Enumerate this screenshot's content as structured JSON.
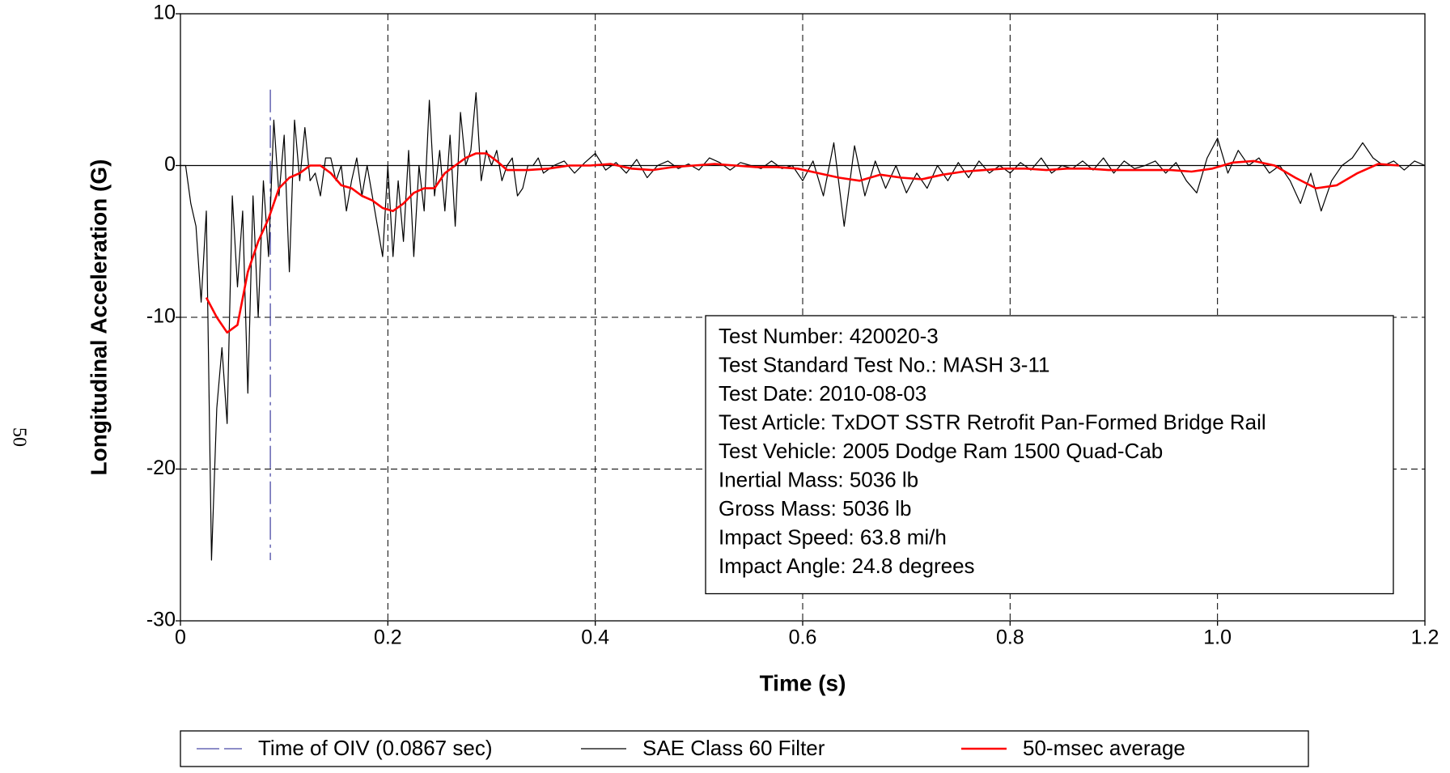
{
  "chart_data": {
    "type": "line",
    "page_number": "50",
    "xlabel": "Time (s)",
    "ylabel": "Longitudinal Acceleration (G)",
    "xlim": [
      0,
      1.2
    ],
    "ylim": [
      -30,
      10
    ],
    "xticks": [
      0,
      0.2,
      0.4,
      0.6,
      0.8,
      {
        "value": 1.0,
        "label": "1.0"
      },
      1.2
    ],
    "yticks": [
      -30,
      -20,
      -10,
      0,
      10
    ],
    "grid": true,
    "legend": "bottom",
    "info_box": [
      "Test Number: 420020-3",
      "Test Standard Test No.: MASH 3-11",
      "Test Date: 2010-08-03",
      "Test Article: TxDOT SSTR Retrofit Pan-Formed Bridge Rail",
      "Test Vehicle: 2005 Dodge Ram 1500 Quad-Cab",
      "Inertial Mass: 5036 lb",
      "Gross Mass: 5036 lb",
      "Impact Speed: 63.8 mi/h",
      "Impact Angle: 24.8 degrees"
    ],
    "series": [
      {
        "name": "Time of OIV (0.0867 sec)",
        "color": "#4b4ba6",
        "dash": "dashdot",
        "width": 1.3,
        "x": [
          0.0867,
          0.0867
        ],
        "values": [
          5,
          -26
        ]
      },
      {
        "name": "SAE Class 60 Filter",
        "color": "#000000",
        "dash": "solid",
        "width": 1.2,
        "x": [
          0,
          0.005,
          0.01,
          0.015,
          0.02,
          0.025,
          0.03,
          0.035,
          0.04,
          0.045,
          0.05,
          0.055,
          0.06,
          0.065,
          0.07,
          0.075,
          0.08,
          0.085,
          0.09,
          0.095,
          0.1,
          0.105,
          0.11,
          0.115,
          0.12,
          0.125,
          0.13,
          0.135,
          0.14,
          0.145,
          0.15,
          0.155,
          0.16,
          0.165,
          0.17,
          0.175,
          0.18,
          0.185,
          0.19,
          0.195,
          0.2,
          0.205,
          0.21,
          0.215,
          0.22,
          0.225,
          0.23,
          0.235,
          0.24,
          0.245,
          0.25,
          0.255,
          0.26,
          0.265,
          0.27,
          0.275,
          0.28,
          0.285,
          0.29,
          0.295,
          0.3,
          0.305,
          0.31,
          0.315,
          0.32,
          0.325,
          0.33,
          0.335,
          0.34,
          0.345,
          0.35,
          0.36,
          0.37,
          0.38,
          0.39,
          0.4,
          0.41,
          0.42,
          0.43,
          0.44,
          0.45,
          0.46,
          0.47,
          0.48,
          0.49,
          0.5,
          0.51,
          0.52,
          0.53,
          0.54,
          0.55,
          0.56,
          0.57,
          0.58,
          0.59,
          0.6,
          0.61,
          0.62,
          0.63,
          0.64,
          0.65,
          0.66,
          0.67,
          0.68,
          0.69,
          0.7,
          0.71,
          0.72,
          0.73,
          0.74,
          0.75,
          0.76,
          0.77,
          0.78,
          0.79,
          0.8,
          0.81,
          0.82,
          0.83,
          0.84,
          0.85,
          0.86,
          0.87,
          0.88,
          0.89,
          0.9,
          0.91,
          0.92,
          0.93,
          0.94,
          0.95,
          0.96,
          0.97,
          0.98,
          0.99,
          1.0,
          1.01,
          1.02,
          1.03,
          1.04,
          1.05,
          1.06,
          1.07,
          1.08,
          1.09,
          1.1,
          1.11,
          1.12,
          1.13,
          1.14,
          1.15,
          1.16,
          1.17,
          1.18,
          1.19,
          1.2
        ],
        "values": [
          0,
          0,
          -2.5,
          -4,
          -9,
          -3,
          -26,
          -16,
          -12,
          -17,
          -2,
          -8,
          -3,
          -15,
          -2,
          -10,
          -1,
          -6,
          3,
          -2,
          2,
          -7,
          3,
          -1,
          2.5,
          -1,
          -0.5,
          -2,
          0.5,
          0.5,
          -1,
          0,
          -3,
          -1,
          0.5,
          -2,
          0,
          -2,
          -4,
          -6,
          0,
          -6,
          -1,
          -5,
          1,
          -6,
          0,
          -3,
          4.3,
          -2,
          1,
          -3,
          2,
          -4,
          3.5,
          0,
          1,
          4.8,
          -1,
          1,
          0,
          1,
          -1,
          0,
          0.5,
          -2,
          -1.5,
          0,
          0,
          0.5,
          -0.5,
          0,
          0.3,
          -0.5,
          0.2,
          0.8,
          -0.3,
          0.2,
          -0.5,
          0.4,
          -0.8,
          0,
          0.3,
          -0.2,
          0.1,
          -0.3,
          0.5,
          0.2,
          -0.3,
          0.2,
          0,
          -0.2,
          0.3,
          -0.2,
          0,
          -1,
          0.3,
          -2,
          1.5,
          -4,
          1.3,
          -2,
          0.3,
          -1.5,
          0,
          -1.8,
          -0.5,
          -1.5,
          0,
          -1,
          0.2,
          -0.8,
          0.3,
          -0.5,
          0,
          -0.5,
          0.2,
          -0.3,
          0.5,
          -0.5,
          0,
          -0.2,
          0.3,
          -0.3,
          0.5,
          -0.5,
          0.3,
          -0.2,
          0,
          0.3,
          -0.5,
          0.2,
          -1,
          -1.8,
          0.5,
          1.8,
          -0.5,
          1,
          0,
          0.5,
          -0.5,
          0,
          -1,
          -2.5,
          -0.5,
          -3,
          -1,
          0,
          0.5,
          1.5,
          0.5,
          0,
          0.3,
          -0.3,
          0.3,
          0
        ]
      },
      {
        "name": "50-msec average",
        "color": "#ff0000",
        "dash": "solid",
        "width": 2.6,
        "x": [
          0.025,
          0.035,
          0.045,
          0.055,
          0.065,
          0.075,
          0.085,
          0.095,
          0.105,
          0.115,
          0.125,
          0.135,
          0.145,
          0.155,
          0.165,
          0.175,
          0.185,
          0.195,
          0.205,
          0.215,
          0.225,
          0.235,
          0.245,
          0.255,
          0.265,
          0.275,
          0.285,
          0.295,
          0.305,
          0.315,
          0.325,
          0.335,
          0.355,
          0.375,
          0.395,
          0.415,
          0.435,
          0.455,
          0.475,
          0.495,
          0.515,
          0.535,
          0.555,
          0.575,
          0.595,
          0.615,
          0.635,
          0.655,
          0.675,
          0.695,
          0.715,
          0.735,
          0.755,
          0.775,
          0.795,
          0.815,
          0.835,
          0.855,
          0.875,
          0.895,
          0.915,
          0.935,
          0.955,
          0.975,
          0.995,
          1.015,
          1.035,
          1.055,
          1.075,
          1.095,
          1.115,
          1.135,
          1.155,
          1.175
        ],
        "values": [
          -8.7,
          -10,
          -11,
          -10.5,
          -7,
          -5,
          -3.5,
          -1.5,
          -0.8,
          -0.5,
          0,
          0,
          -0.5,
          -1.3,
          -1.5,
          -2,
          -2.3,
          -2.8,
          -3,
          -2.5,
          -1.8,
          -1.5,
          -1.5,
          -0.5,
          0,
          0.5,
          0.8,
          0.8,
          0.3,
          -0.3,
          -0.3,
          -0.3,
          -0.2,
          0,
          0,
          0.1,
          -0.2,
          -0.3,
          -0.1,
          0,
          0.1,
          0,
          -0.1,
          -0.1,
          -0.2,
          -0.5,
          -0.8,
          -1,
          -0.6,
          -0.8,
          -0.9,
          -0.6,
          -0.4,
          -0.3,
          -0.2,
          -0.2,
          -0.3,
          -0.2,
          -0.2,
          -0.3,
          -0.3,
          -0.3,
          -0.3,
          -0.4,
          -0.2,
          0.2,
          0.3,
          0,
          -0.8,
          -1.5,
          -1.3,
          -0.5,
          0.1,
          0
        ]
      }
    ]
  }
}
